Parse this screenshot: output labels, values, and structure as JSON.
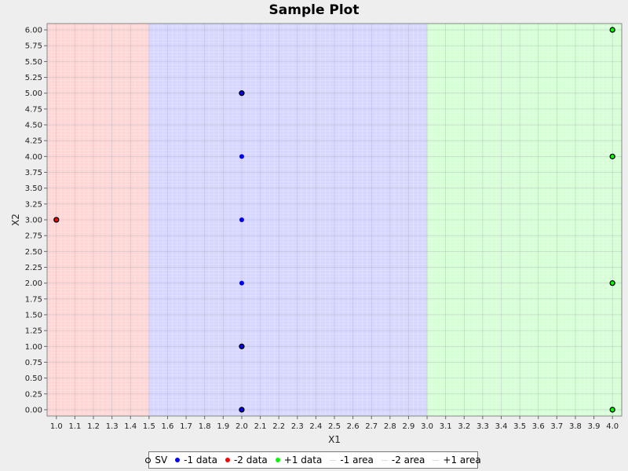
{
  "chart_data": {
    "type": "scatter",
    "title": "Sample Plot",
    "xlabel": "X1",
    "ylabel": "X2",
    "xlim": [
      0.95,
      4.05
    ],
    "ylim": [
      -0.1,
      6.1
    ],
    "x_ticks": [
      "1.0",
      "1.1",
      "1.2",
      "1.3",
      "1.4",
      "1.5",
      "1.6",
      "1.7",
      "1.8",
      "1.9",
      "2.0",
      "2.1",
      "2.2",
      "2.3",
      "2.4",
      "2.5",
      "2.6",
      "2.7",
      "2.8",
      "2.9",
      "3.0",
      "3.1",
      "3.2",
      "3.3",
      "3.4",
      "3.5",
      "3.6",
      "3.7",
      "3.8",
      "3.9",
      "4.0"
    ],
    "y_ticks": [
      "0.00",
      "0.25",
      "0.50",
      "0.75",
      "1.00",
      "1.25",
      "1.50",
      "1.75",
      "2.00",
      "2.25",
      "2.50",
      "2.75",
      "3.00",
      "3.25",
      "3.50",
      "3.75",
      "4.00",
      "4.25",
      "4.50",
      "4.75",
      "5.00",
      "5.25",
      "5.50",
      "5.75",
      "6.00"
    ],
    "grid": true,
    "legend_position": "bottom",
    "areas": [
      {
        "name": "-2 area",
        "x_range": [
          0.95,
          1.5
        ],
        "color": "#ff0000"
      },
      {
        "name": "-1 area",
        "x_range": [
          1.5,
          3.0
        ],
        "color": "#0000ff"
      },
      {
        "name": "+1 area",
        "x_range": [
          3.0,
          4.05
        ],
        "color": "#00ff00"
      }
    ],
    "series": [
      {
        "name": "-1 data",
        "color": "#0000ff",
        "points": [
          [
            2.0,
            0.0
          ],
          [
            2.0,
            1.0
          ],
          [
            2.0,
            2.0
          ],
          [
            2.0,
            3.0
          ],
          [
            2.0,
            4.0
          ],
          [
            2.0,
            5.0
          ]
        ]
      },
      {
        "name": "-2 data",
        "color": "#ff0000",
        "points": [
          [
            1.0,
            3.0
          ]
        ]
      },
      {
        "name": "+1 data",
        "color": "#00ff00",
        "points": [
          [
            4.0,
            0.0
          ],
          [
            4.0,
            2.0
          ],
          [
            4.0,
            4.0
          ],
          [
            4.0,
            6.0
          ]
        ]
      },
      {
        "name": "SV",
        "color": "#000000",
        "points": [
          [
            1.0,
            3.0
          ],
          [
            2.0,
            0.0
          ],
          [
            2.0,
            1.0
          ],
          [
            2.0,
            5.0
          ],
          [
            4.0,
            0.0
          ],
          [
            4.0,
            2.0
          ],
          [
            4.0,
            4.0
          ],
          [
            4.0,
            6.0
          ]
        ]
      }
    ],
    "legend": [
      {
        "label": "SV",
        "marker": "hollow",
        "color": "#000000"
      },
      {
        "label": "-1 data",
        "marker": "dot",
        "color": "#0000ff"
      },
      {
        "label": "-2 data",
        "marker": "dot",
        "color": "#ff0000"
      },
      {
        "label": "+1 data",
        "marker": "dot",
        "color": "#00ff00"
      },
      {
        "label": "-1 area",
        "marker": "blank",
        "color": "#dddddd"
      },
      {
        "label": "-2 area",
        "marker": "blank",
        "color": "#dddddd"
      },
      {
        "label": "+1 area",
        "marker": "blank",
        "color": "#dddddd"
      }
    ]
  }
}
